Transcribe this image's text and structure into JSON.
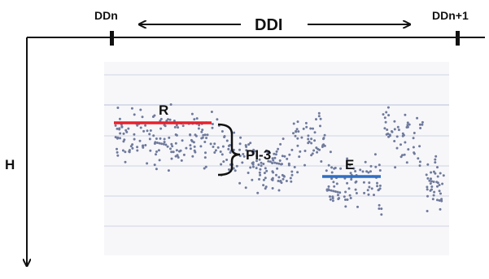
{
  "labels": {
    "dd_n": "DDn",
    "ddi": "DDI",
    "dd_n1": "DDn+1",
    "h": "H",
    "r": "R",
    "pi3": "PI-3",
    "e": "E"
  },
  "colors": {
    "axis": "#111111",
    "scatter": "#6f7a9c",
    "r_line": "#e8202a",
    "e_line": "#2f6fc4",
    "grid": "#c8cde0",
    "plot_bg": "#f6f6f9"
  }
}
